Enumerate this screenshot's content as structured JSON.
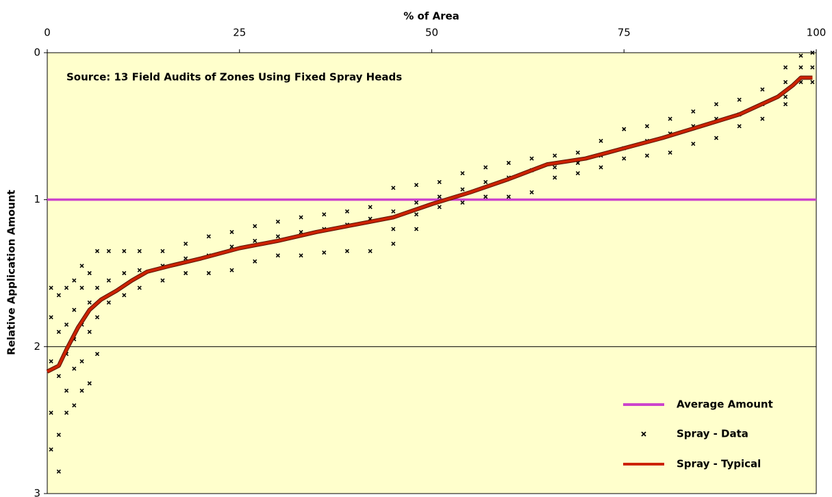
{
  "chart_data": {
    "type": "scatter",
    "annotation": "Source:  13 Field Audits of Zones Using Fixed Spray Heads",
    "xlabel": "% of Area",
    "ylabel": "Relative Application Amount",
    "xlim": [
      0,
      100
    ],
    "xticks": [
      0,
      25,
      50,
      75,
      100
    ],
    "ylim": [
      0,
      3
    ],
    "yticks": [
      0,
      1,
      2,
      3
    ],
    "y_inverted": true,
    "x_axis_position": "top",
    "grid": true,
    "legend": "lower right",
    "background": "#ffffcc",
    "series": [
      {
        "name": "Average Amount",
        "kind": "line",
        "color": "#cc44cc",
        "x": [
          0,
          100
        ],
        "values": [
          1,
          1
        ]
      },
      {
        "name": "Spray - Data",
        "kind": "marker",
        "color": "#000000",
        "x": [
          0.5,
          0.5,
          0.5,
          0.5,
          0.5,
          1.5,
          1.5,
          1.5,
          1.5,
          1.5,
          2.5,
          2.5,
          2.5,
          2.5,
          2.5,
          3.5,
          3.5,
          3.5,
          3.5,
          3.5,
          4.5,
          4.5,
          4.5,
          4.5,
          4.5,
          5.5,
          5.5,
          5.5,
          5.5,
          6.5,
          6.5,
          6.5,
          6.5,
          8,
          8,
          8,
          10,
          10,
          10,
          12,
          12,
          12,
          15,
          15,
          15,
          18,
          18,
          18,
          21,
          21,
          21,
          24,
          24,
          24,
          27,
          27,
          27,
          30,
          30,
          30,
          33,
          33,
          33,
          36,
          36,
          36,
          39,
          39,
          39,
          42,
          42,
          42,
          45,
          45,
          45,
          45,
          48,
          48,
          48,
          48,
          51,
          51,
          51,
          54,
          54,
          54,
          57,
          57,
          57,
          60,
          60,
          60,
          63,
          63,
          63,
          66,
          66,
          66,
          69,
          69,
          69,
          72,
          72,
          72,
          75,
          75,
          75,
          78,
          78,
          78,
          81,
          81,
          81,
          84,
          84,
          84,
          87,
          87,
          87,
          90,
          90,
          90,
          93,
          93,
          93,
          96,
          96,
          96,
          96,
          98,
          98,
          98,
          99.5,
          99.5,
          99.5
        ],
        "values": [
          1.6,
          1.8,
          2.1,
          2.45,
          2.7,
          1.65,
          1.9,
          2.2,
          2.6,
          2.85,
          1.6,
          1.85,
          2.05,
          2.3,
          2.45,
          1.55,
          1.75,
          1.95,
          2.15,
          2.4,
          1.45,
          1.6,
          1.85,
          2.1,
          2.3,
          1.5,
          1.7,
          1.9,
          2.25,
          1.35,
          1.6,
          1.8,
          2.05,
          1.35,
          1.55,
          1.7,
          1.35,
          1.5,
          1.65,
          1.35,
          1.48,
          1.6,
          1.35,
          1.45,
          1.55,
          1.3,
          1.4,
          1.5,
          1.25,
          1.38,
          1.5,
          1.22,
          1.32,
          1.48,
          1.18,
          1.28,
          1.42,
          1.15,
          1.25,
          1.38,
          1.12,
          1.22,
          1.38,
          1.1,
          1.2,
          1.36,
          1.08,
          1.17,
          1.35,
          1.05,
          1.13,
          1.35,
          0.92,
          1.08,
          1.2,
          1.3,
          0.9,
          1.02,
          1.1,
          1.2,
          0.88,
          0.98,
          1.05,
          0.82,
          0.93,
          1.02,
          0.78,
          0.88,
          0.98,
          0.75,
          0.85,
          0.98,
          0.72,
          0.8,
          0.95,
          0.7,
          0.78,
          0.85,
          0.68,
          0.75,
          0.82,
          0.6,
          0.7,
          0.78,
          0.52,
          0.65,
          0.72,
          0.5,
          0.6,
          0.7,
          0.45,
          0.55,
          0.68,
          0.4,
          0.5,
          0.62,
          0.35,
          0.45,
          0.58,
          0.32,
          0.42,
          0.5,
          0.25,
          0.35,
          0.45,
          0.1,
          0.2,
          0.3,
          0.35,
          0.02,
          0.1,
          0.2,
          0,
          0.1,
          0.2
        ]
      },
      {
        "name": "Spray - Typical",
        "kind": "line",
        "color": "#cc2200",
        "x": [
          0,
          1.5,
          2.5,
          4,
          5.5,
          7,
          9,
          11,
          13,
          16,
          20,
          25,
          30,
          35,
          40,
          45,
          50,
          55,
          60,
          65,
          70,
          75,
          80,
          85,
          90,
          95,
          97,
          98,
          99.5
        ],
        "values": [
          2.17,
          2.13,
          2.02,
          1.87,
          1.75,
          1.68,
          1.62,
          1.55,
          1.49,
          1.45,
          1.4,
          1.33,
          1.28,
          1.22,
          1.17,
          1.12,
          1.03,
          0.95,
          0.86,
          0.76,
          0.72,
          0.65,
          0.58,
          0.5,
          0.42,
          0.3,
          0.22,
          0.17,
          0.17
        ]
      }
    ]
  }
}
